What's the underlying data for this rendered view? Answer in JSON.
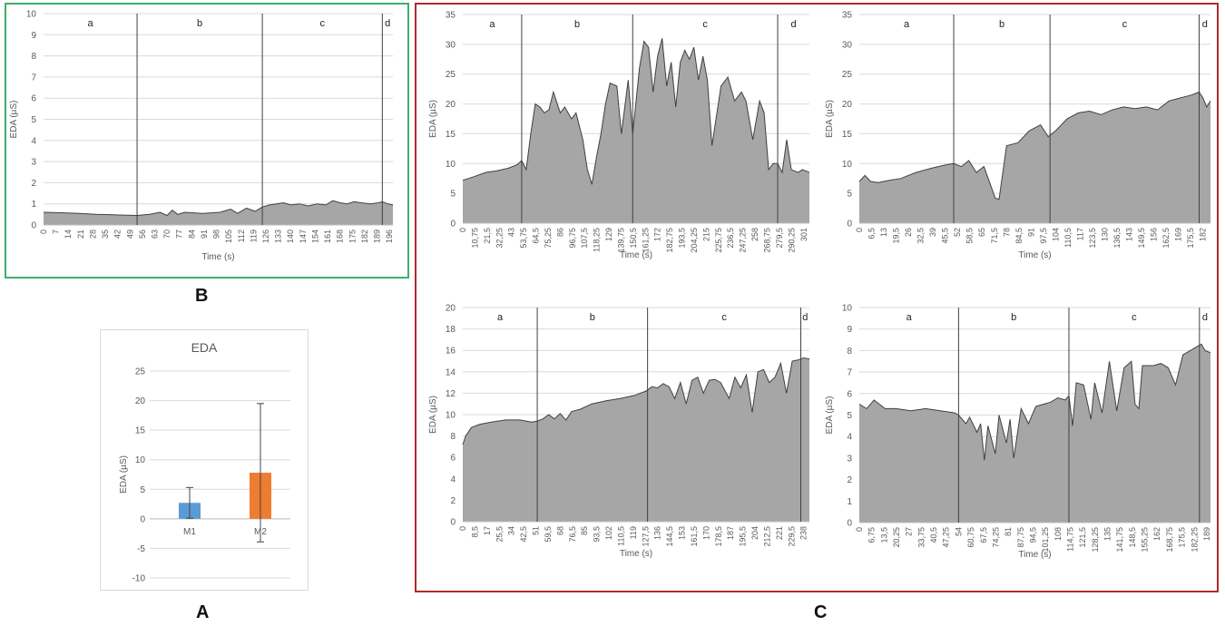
{
  "panel_labels": {
    "a": "A",
    "b": "B",
    "c": "C"
  },
  "colors": {
    "area_fill": "#a6a6a6",
    "area_line": "#404040",
    "gridline": "#d9d9d9",
    "phase_line": "#404040",
    "bar_m1": "#5b9bd5",
    "bar_m2": "#ed7d31",
    "frame_b": "#3fae6a",
    "frame_c": "#b02a2a"
  },
  "chart_data": [
    {
      "id": "B",
      "type": "area",
      "ylabel": "EDA (µS)",
      "xlabel": "Time (s)",
      "ylim": [
        0,
        10
      ],
      "yticks": [
        0,
        1,
        2,
        3,
        4,
        5,
        6,
        7,
        8,
        9,
        10
      ],
      "xlim": [
        0,
        198
      ],
      "xticks": [
        0,
        7,
        14,
        21,
        28,
        35,
        42,
        49,
        56,
        63,
        70,
        77,
        84,
        91,
        98,
        105,
        112,
        119,
        126,
        133,
        140,
        147,
        154,
        161,
        168,
        175,
        182,
        189,
        196
      ],
      "phases": [
        {
          "label": "a",
          "start": 0,
          "end": 53
        },
        {
          "label": "b",
          "start": 53,
          "end": 124
        },
        {
          "label": "c",
          "start": 124,
          "end": 192
        },
        {
          "label": "d",
          "start": 192,
          "end": 198
        }
      ],
      "x": [
        0,
        10,
        20,
        30,
        40,
        53,
        60,
        66,
        70,
        73,
        76,
        80,
        90,
        100,
        106,
        110,
        115,
        120,
        124,
        128,
        132,
        136,
        140,
        145,
        150,
        155,
        160,
        164,
        168,
        172,
        176,
        180,
        185,
        190,
        192,
        195,
        198
      ],
      "values": [
        0.6,
        0.58,
        0.55,
        0.5,
        0.48,
        0.45,
        0.5,
        0.6,
        0.45,
        0.7,
        0.5,
        0.6,
        0.55,
        0.6,
        0.75,
        0.55,
        0.8,
        0.65,
        0.85,
        0.95,
        1.0,
        1.05,
        0.95,
        1.0,
        0.9,
        1.0,
        0.95,
        1.15,
        1.05,
        1.0,
        1.1,
        1.05,
        1.0,
        1.05,
        1.1,
        1.0,
        0.95
      ]
    },
    {
      "id": "A",
      "type": "bar",
      "title": "EDA",
      "ylabel": "EDA (µS)",
      "ylim": [
        -10,
        25
      ],
      "yticks": [
        -10,
        -5,
        0,
        5,
        10,
        15,
        20,
        25
      ],
      "categories": [
        "M1",
        "M2"
      ],
      "values": [
        2.7,
        7.8
      ],
      "error": [
        2.6,
        11.7
      ]
    },
    {
      "id": "C1",
      "type": "area",
      "ylabel": "EDA (µS)",
      "xlabel": "Time (s)",
      "ylim": [
        0,
        35
      ],
      "yticks": [
        0,
        5,
        10,
        15,
        20,
        25,
        30,
        35
      ],
      "xlim": [
        0,
        306
      ],
      "xticks": [
        "0",
        "10,75",
        "21,5",
        "32,25",
        "43",
        "53,75",
        "64,5",
        "75,25",
        "86",
        "96,75",
        "107,5",
        "118,25",
        "129",
        "139,75",
        "150,5",
        "161,25",
        "172",
        "182,75",
        "193,5",
        "204,25",
        "215",
        "225,75",
        "236,5",
        "247,25",
        "258",
        "268,75",
        "279,5",
        "290,25",
        "301"
      ],
      "xtick_values": [
        0,
        10.75,
        21.5,
        32.25,
        43,
        53.75,
        64.5,
        75.25,
        86,
        96.75,
        107.5,
        118.25,
        129,
        139.75,
        150.5,
        161.25,
        172,
        182.75,
        193.5,
        204.25,
        215,
        225.75,
        236.5,
        247.25,
        258,
        268.75,
        279.5,
        290.25,
        301
      ],
      "phases": [
        {
          "label": "a",
          "start": 0,
          "end": 52
        },
        {
          "label": "b",
          "start": 52,
          "end": 150
        },
        {
          "label": "c",
          "start": 150,
          "end": 278
        },
        {
          "label": "d",
          "start": 278,
          "end": 306
        }
      ],
      "x": [
        0,
        10,
        20,
        30,
        40,
        48,
        52,
        56,
        60,
        64,
        68,
        72,
        76,
        80,
        86,
        90,
        96,
        100,
        106,
        110,
        114,
        118,
        122,
        126,
        130,
        136,
        140,
        146,
        150,
        156,
        160,
        164,
        168,
        172,
        176,
        180,
        184,
        188,
        192,
        196,
        200,
        204,
        208,
        212,
        216,
        220,
        224,
        228,
        234,
        240,
        246,
        250,
        256,
        262,
        266,
        270,
        274,
        278,
        282,
        286,
        290,
        296,
        300,
        306
      ],
      "values": [
        7.2,
        7.8,
        8.5,
        8.8,
        9.2,
        9.8,
        10.5,
        9.0,
        15,
        20,
        19.5,
        18.5,
        19,
        22,
        18.5,
        19.5,
        17.5,
        18.5,
        14,
        9,
        6.5,
        11,
        15,
        20,
        23.5,
        23,
        15,
        24,
        15,
        26,
        30.5,
        29.5,
        22,
        28,
        31,
        23,
        27,
        19.5,
        27,
        29,
        27.5,
        29.5,
        24,
        28,
        24,
        13,
        18,
        23,
        24.5,
        20.5,
        22,
        20.5,
        14,
        20.5,
        18.5,
        9,
        10,
        10,
        8.5,
        14,
        9,
        8.5,
        9,
        8.5
      ]
    },
    {
      "id": "C2",
      "type": "area",
      "ylabel": "EDA (µS)",
      "xlabel": "Time (s)",
      "ylim": [
        0,
        35
      ],
      "yticks": [
        0,
        5,
        10,
        15,
        20,
        25,
        30,
        35
      ],
      "xlim": [
        0,
        186
      ],
      "xticks": [
        "0",
        "6,5",
        "13",
        "19,5",
        "26",
        "32,5",
        "39",
        "45,5",
        "52",
        "58,5",
        "65",
        "71,5",
        "78",
        "84,5",
        "91",
        "97,5",
        "104",
        "110,5",
        "117",
        "123,5",
        "130",
        "136,5",
        "143",
        "149,5",
        "156",
        "162,5",
        "169",
        "175,5",
        "182"
      ],
      "xtick_values": [
        0,
        6.5,
        13,
        19.5,
        26,
        32.5,
        39,
        45.5,
        52,
        58.5,
        65,
        71.5,
        78,
        84.5,
        91,
        97.5,
        104,
        110.5,
        117,
        123.5,
        130,
        136.5,
        143,
        149.5,
        156,
        162.5,
        169,
        175.5,
        182
      ],
      "phases": [
        {
          "label": "a",
          "start": 0,
          "end": 50
        },
        {
          "label": "b",
          "start": 50,
          "end": 101
        },
        {
          "label": "c",
          "start": 101,
          "end": 180
        },
        {
          "label": "d",
          "start": 180,
          "end": 186
        }
      ],
      "x": [
        0,
        3,
        6,
        10,
        16,
        22,
        30,
        38,
        46,
        50,
        54,
        58,
        62,
        66,
        70,
        72,
        74,
        78,
        84,
        90,
        96,
        100,
        104,
        110,
        116,
        122,
        128,
        134,
        140,
        146,
        152,
        158,
        164,
        170,
        176,
        180,
        182,
        184,
        186
      ],
      "values": [
        7,
        8,
        7,
        6.8,
        7.2,
        7.5,
        8.5,
        9.2,
        9.8,
        10,
        9.5,
        10.5,
        8.5,
        9.5,
        6,
        4.2,
        4,
        13,
        13.5,
        15.5,
        16.5,
        14.5,
        15.5,
        17.5,
        18.5,
        18.8,
        18.2,
        19,
        19.5,
        19.2,
        19.5,
        19,
        20.5,
        21,
        21.5,
        22,
        21,
        19.5,
        20.5
      ]
    },
    {
      "id": "C3",
      "type": "area",
      "ylabel": "EDA (µS)",
      "xlabel": "Time (s)",
      "ylim": [
        0,
        20
      ],
      "yticks": [
        0,
        2,
        4,
        6,
        8,
        10,
        12,
        14,
        16,
        18,
        20
      ],
      "xlim": [
        0,
        242
      ],
      "xticks": [
        "0",
        "8,5",
        "17",
        "25,5",
        "34",
        "42,5",
        "51",
        "59,5",
        "68",
        "76,5",
        "85",
        "93,5",
        "102",
        "110,5",
        "119",
        "127,5",
        "136",
        "144,5",
        "153",
        "161,5",
        "170",
        "178,5",
        "187",
        "195,5",
        "204",
        "212,5",
        "221",
        "229,5",
        "238"
      ],
      "xtick_values": [
        0,
        8.5,
        17,
        25.5,
        34,
        42.5,
        51,
        59.5,
        68,
        76.5,
        85,
        93.5,
        102,
        110.5,
        119,
        127.5,
        136,
        144.5,
        153,
        161.5,
        170,
        178.5,
        187,
        195.5,
        204,
        212.5,
        221,
        229.5,
        238
      ],
      "phases": [
        {
          "label": "a",
          "start": 0,
          "end": 52
        },
        {
          "label": "b",
          "start": 52,
          "end": 129
        },
        {
          "label": "c",
          "start": 129,
          "end": 236
        },
        {
          "label": "d",
          "start": 236,
          "end": 242
        }
      ],
      "x": [
        0,
        2,
        6,
        12,
        20,
        30,
        40,
        48,
        52,
        56,
        60,
        64,
        68,
        72,
        76,
        82,
        90,
        100,
        110,
        120,
        128,
        132,
        136,
        140,
        144,
        148,
        152,
        156,
        160,
        164,
        168,
        172,
        176,
        180,
        186,
        190,
        194,
        198,
        202,
        206,
        210,
        214,
        218,
        222,
        226,
        230,
        234,
        238,
        242
      ],
      "values": [
        7.2,
        8,
        8.8,
        9.1,
        9.3,
        9.5,
        9.5,
        9.3,
        9.4,
        9.6,
        10,
        9.6,
        10.1,
        9.5,
        10.3,
        10.5,
        11,
        11.3,
        11.5,
        11.8,
        12.2,
        12.6,
        12.5,
        12.9,
        12.6,
        11.5,
        13,
        11,
        13.2,
        13.5,
        12,
        13.2,
        13.3,
        13,
        11.5,
        13.5,
        12.5,
        13.7,
        10.2,
        14,
        14.2,
        13,
        13.5,
        14.8,
        12,
        15,
        15.1,
        15.3,
        15.2
      ]
    },
    {
      "id": "C4",
      "type": "area",
      "ylabel": "EDA (µS)",
      "xlabel": "Time (s)",
      "ylim": [
        0,
        10
      ],
      "yticks": [
        0,
        1,
        2,
        3,
        4,
        5,
        6,
        7,
        8,
        9,
        10
      ],
      "xlim": [
        0,
        191
      ],
      "xticks": [
        "0",
        "6,75",
        "13,5",
        "20,25",
        "27",
        "33,75",
        "40,5",
        "47,25",
        "54",
        "60,75",
        "67,5",
        "74,25",
        "81",
        "87,75",
        "94,5",
        "101,25",
        "108",
        "114,75",
        "121,5",
        "128,25",
        "135",
        "141,75",
        "148,5",
        "155,25",
        "162",
        "168,75",
        "175,5",
        "182,25",
        "189"
      ],
      "xtick_values": [
        0,
        6.75,
        13.5,
        20.25,
        27,
        33.75,
        40.5,
        47.25,
        54,
        60.75,
        67.5,
        74.25,
        81,
        87.75,
        94.5,
        101.25,
        108,
        114.75,
        121.5,
        128.25,
        135,
        141.75,
        148.5,
        155.25,
        162,
        168.75,
        175.5,
        182.25,
        189
      ],
      "phases": [
        {
          "label": "a",
          "start": 0,
          "end": 54
        },
        {
          "label": "b",
          "start": 54,
          "end": 114
        },
        {
          "label": "c",
          "start": 114,
          "end": 185
        },
        {
          "label": "d",
          "start": 185,
          "end": 191
        }
      ],
      "x": [
        0,
        4,
        8,
        14,
        20,
        28,
        36,
        44,
        52,
        54,
        58,
        60,
        64,
        66,
        68,
        70,
        74,
        76,
        80,
        82,
        84,
        88,
        92,
        96,
        100,
        104,
        108,
        112,
        114,
        116,
        118,
        122,
        126,
        128,
        132,
        136,
        140,
        144,
        148,
        150,
        152,
        154,
        160,
        164,
        168,
        172,
        176,
        180,
        184,
        186,
        188,
        191
      ],
      "values": [
        5.5,
        5.3,
        5.7,
        5.3,
        5.3,
        5.2,
        5.3,
        5.2,
        5.1,
        5.0,
        4.6,
        4.9,
        4.2,
        4.6,
        2.9,
        4.5,
        3.2,
        5.0,
        3.7,
        4.8,
        3.0,
        5.3,
        4.6,
        5.4,
        5.5,
        5.6,
        5.8,
        5.7,
        5.9,
        4.5,
        6.5,
        6.4,
        4.8,
        6.5,
        5.1,
        7.5,
        5.2,
        7.2,
        7.5,
        5.5,
        5.3,
        7.3,
        7.3,
        7.4,
        7.2,
        6.4,
        7.8,
        8.0,
        8.2,
        8.3,
        8.0,
        7.9
      ]
    }
  ]
}
